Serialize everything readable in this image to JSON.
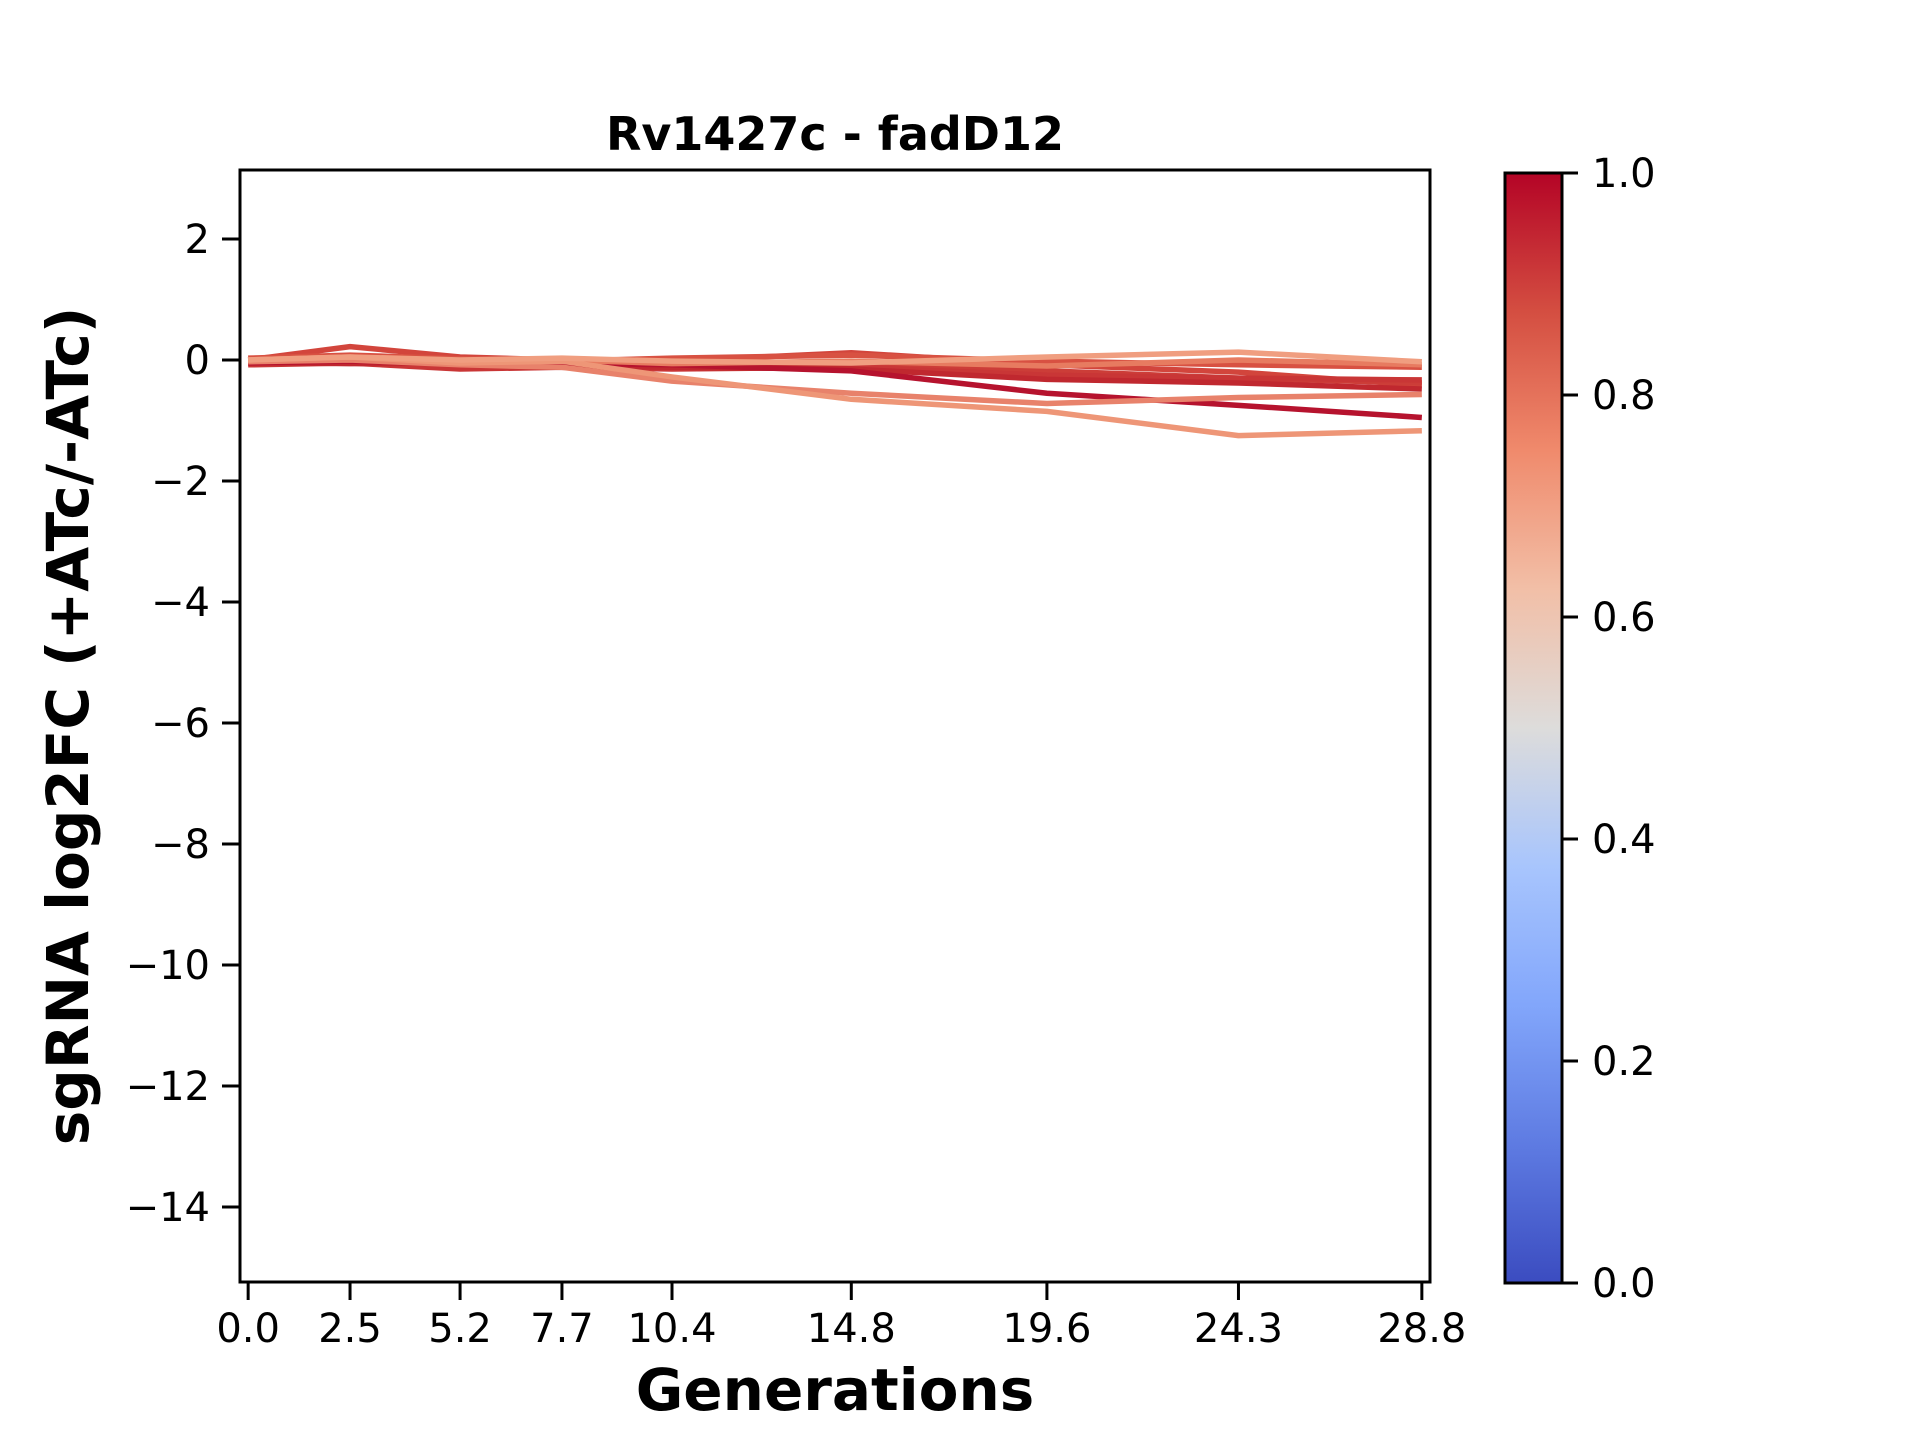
{
  "figure": {
    "background": "#ffffff",
    "spine_color": "#000000"
  },
  "chart_data": {
    "type": "line",
    "title": "Rv1427c - fadD12",
    "xlabel": "Generations",
    "ylabel": "sgRNA log2FC (+ATc/-ATc)",
    "grid": false,
    "legend": "none (colorbar on right)",
    "xlim": [
      -0.2,
      29.0
    ],
    "ylim": [
      -15.24,
      3.14
    ],
    "x": [
      0.0,
      2.5,
      5.2,
      7.7,
      10.4,
      14.8,
      19.6,
      24.3,
      28.8
    ],
    "x_ticks": {
      "values": [
        0.0,
        2.5,
        5.2,
        7.7,
        10.4,
        14.8,
        19.6,
        24.3,
        28.8
      ],
      "labels": [
        "0.0",
        "2.5",
        "5.2",
        "7.7",
        "10.4",
        "14.8",
        "19.6",
        "24.3",
        "28.8"
      ]
    },
    "y_ticks": {
      "values": [
        2,
        0,
        -2,
        -4,
        -6,
        -8,
        -10,
        -12,
        -14
      ],
      "labels": [
        "2",
        "0",
        "−2",
        "−4",
        "−6",
        "−8",
        "−10",
        "−12",
        "−14"
      ]
    },
    "series": [
      {
        "name": "line-05",
        "color": "#D2453C",
        "values": [
          0.0,
          0.22,
          0.05,
          0.0,
          -0.02,
          0.12,
          -0.08,
          -0.2,
          -0.42
        ]
      },
      {
        "name": "line-06",
        "color": "#D85142",
        "values": [
          0.03,
          0.08,
          0.02,
          -0.02,
          0.03,
          0.08,
          -0.02,
          -0.08,
          -0.12
        ]
      },
      {
        "name": "line-04",
        "color": "#CC3D38",
        "values": [
          -0.02,
          0.05,
          -0.12,
          -0.08,
          -0.1,
          -0.05,
          -0.18,
          -0.3,
          -0.38
        ]
      },
      {
        "name": "line-03",
        "color": "#C93636",
        "values": [
          -0.08,
          -0.05,
          -0.15,
          -0.12,
          -0.15,
          -0.12,
          -0.25,
          -0.3,
          -0.33
        ]
      },
      {
        "name": "line-02",
        "color": "#C0282F",
        "values": [
          -0.04,
          -0.06,
          -0.05,
          -0.1,
          -0.12,
          -0.15,
          -0.32,
          -0.38,
          -0.48
        ]
      },
      {
        "name": "line-01",
        "color": "#B6132E",
        "values": [
          -0.05,
          -0.02,
          -0.06,
          -0.05,
          -0.08,
          -0.18,
          -0.55,
          -0.75,
          -0.95
        ]
      },
      {
        "name": "line-07",
        "color": "#E77B60",
        "values": [
          0.0,
          0.02,
          -0.03,
          0.0,
          -0.06,
          -0.02,
          -0.1,
          0.0,
          -0.08
        ]
      },
      {
        "name": "line-08",
        "color": "#E8826B",
        "values": [
          -0.03,
          0.0,
          -0.08,
          -0.12,
          -0.35,
          -0.55,
          -0.72,
          -0.62,
          -0.57
        ]
      },
      {
        "name": "line-09",
        "color": "#EE9677",
        "values": [
          0.0,
          0.05,
          -0.05,
          -0.02,
          -0.28,
          -0.65,
          -0.85,
          -1.25,
          -1.17
        ]
      },
      {
        "name": "line-10",
        "color": "#F09E80",
        "values": [
          0.0,
          0.05,
          0.0,
          0.03,
          -0.02,
          -0.05,
          0.05,
          0.13,
          -0.03
        ]
      }
    ],
    "colorbar": {
      "orientation": "vertical",
      "range": [
        0.0,
        1.0
      ],
      "ticks": {
        "values": [
          1.0,
          0.8,
          0.6,
          0.4,
          0.2,
          0.0
        ],
        "labels": [
          "1.0",
          "0.8",
          "0.6",
          "0.4",
          "0.2",
          "0.0"
        ]
      },
      "colormap_name": "coolwarm",
      "gradient": [
        {
          "offset": 0.0,
          "color": "#3B4CC0"
        },
        {
          "offset": 0.125,
          "color": "#5E7BE2"
        },
        {
          "offset": 0.25,
          "color": "#82A6FB"
        },
        {
          "offset": 0.375,
          "color": "#A8C5FD"
        },
        {
          "offset": 0.5,
          "color": "#DDDCDB"
        },
        {
          "offset": 0.625,
          "color": "#F2BFA7"
        },
        {
          "offset": 0.75,
          "color": "#F08A6C"
        },
        {
          "offset": 0.875,
          "color": "#D44E41"
        },
        {
          "offset": 1.0,
          "color": "#B40426"
        }
      ]
    }
  }
}
